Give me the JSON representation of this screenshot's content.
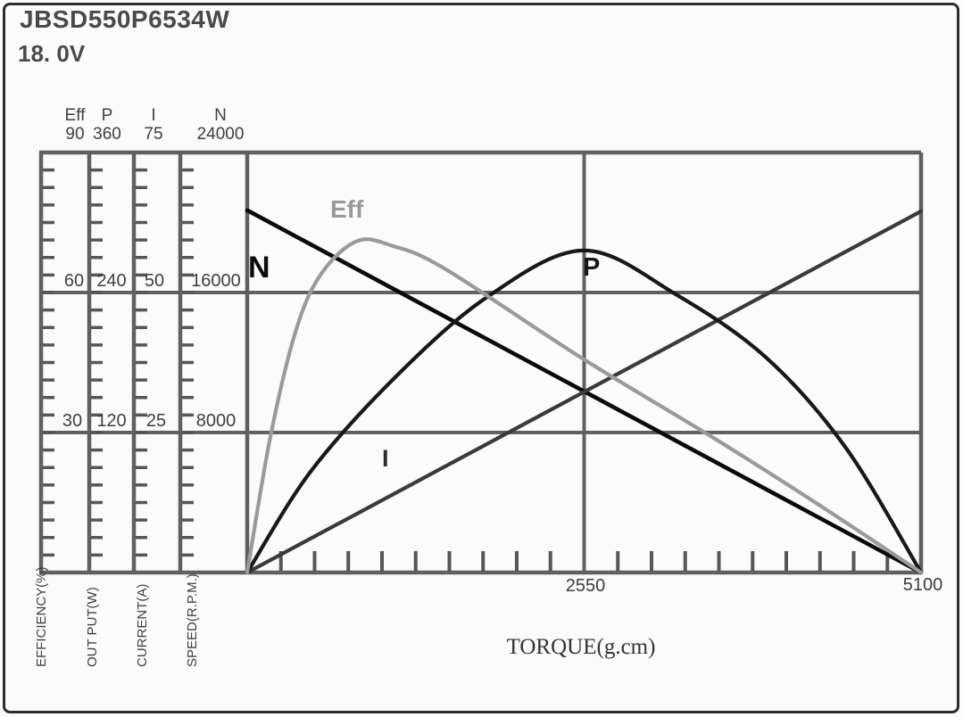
{
  "header": {
    "model": "JBSD550P6534W",
    "voltage": "18. 0V"
  },
  "axes": {
    "left": [
      {
        "name": "Eff",
        "max": "90",
        "mid": "60",
        "low": "30",
        "unit_label": "EFFICIENCY(%)"
      },
      {
        "name": "P",
        "max": "360",
        "mid": "240",
        "low": "120",
        "unit_label": "OUT PUT(W)"
      },
      {
        "name": "I",
        "max": "75",
        "mid": "50",
        "low": "25",
        "unit_label": "CURRENT(A)"
      },
      {
        "name": "N",
        "max": "24000",
        "mid": "16000",
        "low": "8000",
        "unit_label": "SPEED(R.P.M.)"
      }
    ],
    "x": {
      "label": "TORQUE(g.cm)",
      "mid": "2550",
      "max": "5100"
    }
  },
  "curve_labels": {
    "n": "N",
    "eff": "Eff",
    "p": "P",
    "i": "I"
  },
  "colors": {
    "frame": "#2e2e2e",
    "grid": "#606060",
    "tick": "#565656",
    "text": "#3f3f3f",
    "curve_n": "#0b0b0b",
    "curve_p": "#181818",
    "curve_i": "#3a3a3a",
    "curve_eff": "#9a9a9a"
  },
  "chart_data": {
    "type": "line",
    "title": "JBSD550P6534W 18.0V motor performance curves",
    "xlabel": "TORQUE(g.cm)",
    "xlim": [
      0,
      5100
    ],
    "x_tick_step": 255,
    "x_labeled_ticks": [
      2550,
      5100
    ],
    "grid": "thirds (two horizontal gridlines, one vertical gridline at 2550)",
    "legend_position": "inline curve labels",
    "series": [
      {
        "name": "N",
        "axis": "SPEED(R.P.M.)",
        "ylim": [
          0,
          24000
        ],
        "color": "#0b0b0b",
        "points": [
          [
            0,
            20700
          ],
          [
            5100,
            0
          ]
        ]
      },
      {
        "name": "I",
        "axis": "CURRENT(A)",
        "ylim": [
          0,
          75
        ],
        "color": "#3a3a3a",
        "points": [
          [
            0,
            0
          ],
          [
            5100,
            64.5
          ]
        ]
      },
      {
        "name": "P",
        "axis": "OUT PUT(W)",
        "ylim": [
          0,
          360
        ],
        "color": "#181818",
        "points": [
          [
            0,
            0
          ],
          [
            490,
            88
          ],
          [
            1170,
            173
          ],
          [
            1840,
            238
          ],
          [
            2550,
            276
          ],
          [
            3250,
            238
          ],
          [
            3930,
            184
          ],
          [
            4530,
            107
          ],
          [
            5100,
            0
          ]
        ]
      },
      {
        "name": "Eff",
        "axis": "EFFICIENCY(%)",
        "ylim": [
          0,
          90
        ],
        "color": "#9a9a9a",
        "points": [
          [
            0,
            0
          ],
          [
            175,
            29
          ],
          [
            370,
            52
          ],
          [
            560,
            64
          ],
          [
            830,
            71
          ],
          [
            1100,
            70
          ],
          [
            1500,
            65
          ],
          [
            2530,
            46
          ],
          [
            3520,
            29
          ],
          [
            4300,
            15
          ],
          [
            5100,
            0
          ]
        ]
      }
    ]
  }
}
